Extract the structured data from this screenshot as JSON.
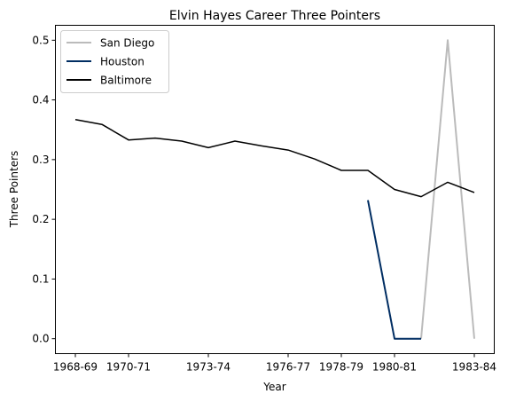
{
  "chart_data": {
    "type": "line",
    "title": "Elvin Hayes Career Three Pointers",
    "xlabel": "Year",
    "ylabel": "Three Pointers",
    "x_tick_labels": [
      "1968-69",
      "1970-71",
      "1973-74",
      "1976-77",
      "1978-79",
      "1980-81",
      "1983-84"
    ],
    "y_ticks": [
      0.0,
      0.1,
      0.2,
      0.3,
      0.4,
      0.5
    ],
    "y_tick_labels": [
      "0.0",
      "0.1",
      "0.2",
      "0.3",
      "0.4",
      "0.5"
    ],
    "ylim": [
      -0.025,
      0.525
    ],
    "grid": false,
    "legend_position": "upper-left",
    "seasons": [
      "1968-69",
      "1969-70",
      "1970-71",
      "1971-72",
      "1972-73",
      "1973-74",
      "1974-75",
      "1975-76",
      "1976-77",
      "1977-78",
      "1978-79",
      "1979-80",
      "1980-81",
      "1981-82",
      "1982-83",
      "1983-84"
    ],
    "series": [
      {
        "name": "San Diego",
        "color": "#bbbbbb",
        "seasons": [
          "1981-82",
          "1982-83",
          "1983-84"
        ],
        "values": [
          0.0,
          0.5,
          0.0
        ]
      },
      {
        "name": "Houston",
        "color": "#002d62",
        "seasons": [
          "1979-80",
          "1980-81",
          "1981-82"
        ],
        "values": [
          0.232,
          0.0,
          0.0
        ]
      },
      {
        "name": "Baltimore",
        "color": "#000000",
        "seasons": [
          "1968-69",
          "1969-70",
          "1970-71",
          "1971-72",
          "1972-73",
          "1973-74",
          "1974-75",
          "1975-76",
          "1976-77",
          "1977-78",
          "1978-79",
          "1979-80",
          "1980-81",
          "1981-82",
          "1982-83",
          "1983-84"
        ],
        "values": [
          0.367,
          0.359,
          0.333,
          0.336,
          0.331,
          0.32,
          0.331,
          0.323,
          0.316,
          0.301,
          0.282,
          0.282,
          0.25,
          0.238,
          0.262,
          0.245
        ]
      }
    ]
  }
}
